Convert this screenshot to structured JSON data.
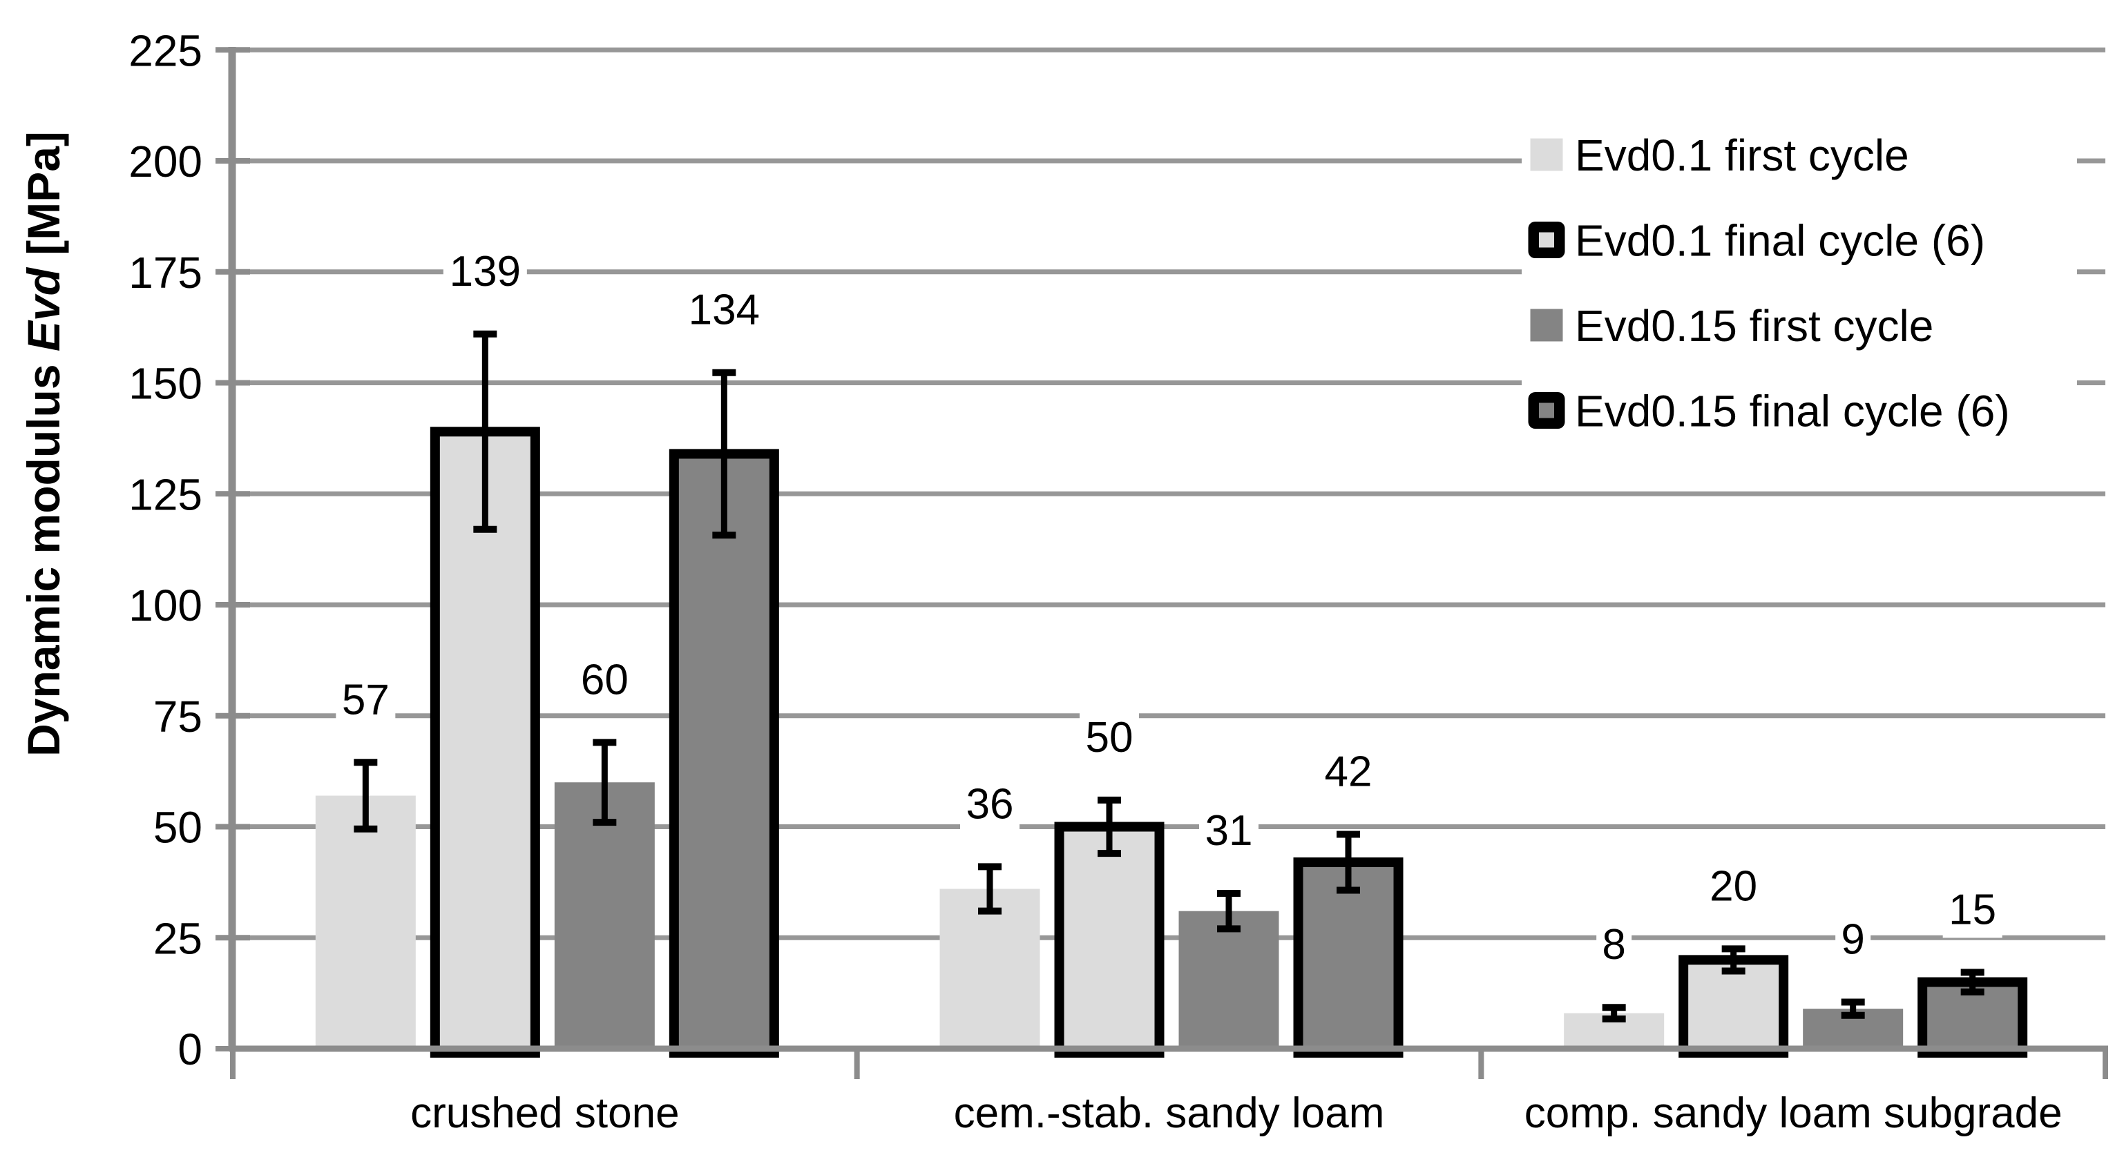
{
  "chart_data": {
    "type": "bar",
    "title": "",
    "ylabel_text": "Dynamic modulus Evd [MPa]",
    "ylabel_parts": {
      "prefix": "Dynamic modulus ",
      "italic": "Evd",
      "suffix": " [MPa]"
    },
    "ylim": [
      0,
      225
    ],
    "ytick_step": 25,
    "yticks": [
      0,
      25,
      50,
      75,
      100,
      125,
      150,
      175,
      200,
      225
    ],
    "grid": "horizontal",
    "legend_position": "inside-upper-right",
    "categories": [
      "crushed stone",
      "cem.-stab. sandy loam",
      "comp. sandy loam subgrade"
    ],
    "series": [
      {
        "name": "Evd0.1 first cycle",
        "fill": "#DCDCDC",
        "border": false,
        "values": [
          57,
          36,
          8
        ],
        "errors": [
          7.5,
          5,
          1.3
        ]
      },
      {
        "name": "Evd0.1 final cycle (6)",
        "fill": "#DCDCDC",
        "border": true,
        "values": [
          139,
          50,
          20
        ],
        "errors": [
          22,
          6,
          2.5
        ]
      },
      {
        "name": "Evd0.15 first cycle",
        "fill": "#848484",
        "border": false,
        "values": [
          60,
          31,
          9
        ],
        "errors": [
          9,
          4,
          1.5
        ]
      },
      {
        "name": "Evd0.15 final cycle (6)",
        "fill": "#848484",
        "border": true,
        "values": [
          134,
          42,
          15
        ],
        "errors": [
          18.3,
          6.3,
          2.2
        ]
      }
    ],
    "value_labels": [
      [
        "57",
        "36",
        "8"
      ],
      [
        "139",
        "50",
        "20"
      ],
      [
        "60",
        "31",
        "9"
      ],
      [
        "134",
        "42",
        "15"
      ]
    ],
    "colors": {
      "background": "#FFFFFF",
      "gridline": "#979797",
      "axis": "#8C8C8C",
      "bar_border": "#000000",
      "error_bar": "#000000",
      "text": "#000000"
    }
  }
}
